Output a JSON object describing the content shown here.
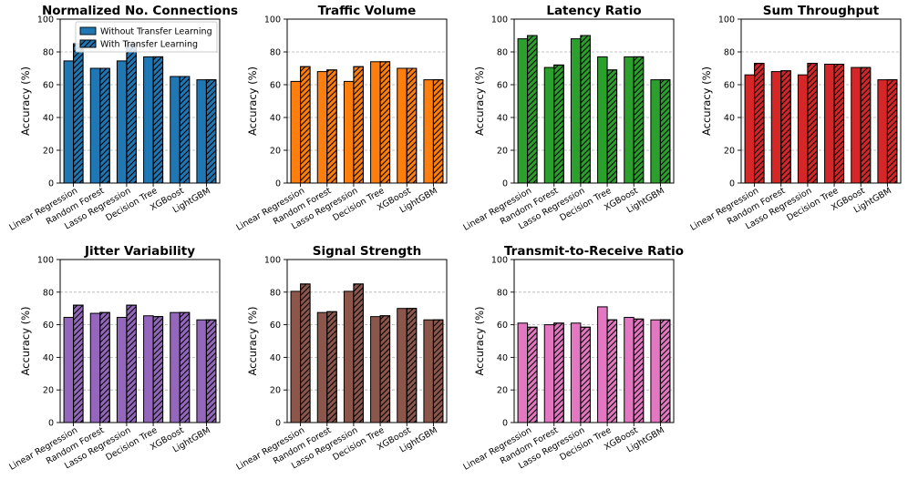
{
  "legend": {
    "without": "Without Transfer Learning",
    "with": "With Transfer Learning"
  },
  "chart_data": [
    {
      "type": "bar",
      "title": "Normalized No. Connections",
      "color": "#1f77b4",
      "ylabel": "Accuracy (%)",
      "xlabel": "",
      "ylim": [
        0,
        100
      ],
      "yticks": [
        0,
        20,
        40,
        60,
        80,
        100
      ],
      "categories": [
        "Linear Regression",
        "Random Forest",
        "Lasso Regression",
        "Decision Tree",
        "XGBoost",
        "LightGBM"
      ],
      "series": [
        {
          "name": "Without Transfer Learning",
          "values": [
            74.5,
            70,
            74.5,
            77,
            65,
            63
          ]
        },
        {
          "name": "With Transfer Learning",
          "values": [
            85,
            70,
            85,
            77,
            65,
            63
          ]
        }
      ],
      "legend": true
    },
    {
      "type": "bar",
      "title": "Traffic Volume",
      "color": "#ff7f0e",
      "ylabel": "Accuracy (%)",
      "xlabel": "",
      "ylim": [
        0,
        100
      ],
      "yticks": [
        0,
        20,
        40,
        60,
        80,
        100
      ],
      "categories": [
        "Linear Regression",
        "Random Forest",
        "Lasso Regression",
        "Decision Tree",
        "XGBoost",
        "LightGBM"
      ],
      "series": [
        {
          "name": "Without Transfer Learning",
          "values": [
            62,
            68,
            62,
            74,
            70,
            63
          ]
        },
        {
          "name": "With Transfer Learning",
          "values": [
            71,
            69,
            71,
            74,
            70,
            63
          ]
        }
      ]
    },
    {
      "type": "bar",
      "title": "Latency Ratio",
      "color": "#2ca02c",
      "ylabel": "Accuracy (%)",
      "xlabel": "",
      "ylim": [
        0,
        100
      ],
      "yticks": [
        0,
        20,
        40,
        60,
        80,
        100
      ],
      "categories": [
        "Linear Regression",
        "Random Forest",
        "Lasso Regression",
        "Decision Tree",
        "XGBoost",
        "LightGBM"
      ],
      "series": [
        {
          "name": "Without Transfer Learning",
          "values": [
            88,
            70.5,
            88,
            77,
            77,
            63
          ]
        },
        {
          "name": "With Transfer Learning",
          "values": [
            90,
            72,
            90,
            69,
            77,
            63
          ]
        }
      ]
    },
    {
      "type": "bar",
      "title": "Sum Throughput",
      "color": "#d62728",
      "ylabel": "Accuracy (%)",
      "xlabel": "",
      "ylim": [
        0,
        100
      ],
      "yticks": [
        0,
        20,
        40,
        60,
        80,
        100
      ],
      "categories": [
        "Linear Regression",
        "Random Forest",
        "Lasso Regression",
        "Decision Tree",
        "XGBoost",
        "LightGBM"
      ],
      "series": [
        {
          "name": "Without Transfer Learning",
          "values": [
            66,
            68,
            66,
            72.5,
            70.5,
            63
          ]
        },
        {
          "name": "With Transfer Learning",
          "values": [
            73,
            68.5,
            73,
            72.5,
            70.5,
            63
          ]
        }
      ]
    },
    {
      "type": "bar",
      "title": "Jitter Variability",
      "color": "#9467bd",
      "ylabel": "Accuracy (%)",
      "xlabel": "",
      "ylim": [
        0,
        100
      ],
      "yticks": [
        0,
        20,
        40,
        60,
        80,
        100
      ],
      "categories": [
        "Linear Regression",
        "Random Forest",
        "Lasso Regression",
        "Decision Tree",
        "XGBoost",
        "LightGBM"
      ],
      "series": [
        {
          "name": "Without Transfer Learning",
          "values": [
            64.5,
            67,
            64.5,
            65.5,
            67.5,
            63
          ]
        },
        {
          "name": "With Transfer Learning",
          "values": [
            72,
            67.5,
            72,
            65,
            67.5,
            63
          ]
        }
      ]
    },
    {
      "type": "bar",
      "title": "Signal Strength",
      "color": "#8c564b",
      "ylabel": "Accuracy (%)",
      "xlabel": "",
      "ylim": [
        0,
        100
      ],
      "yticks": [
        0,
        20,
        40,
        60,
        80,
        100
      ],
      "categories": [
        "Linear Regression",
        "Random Forest",
        "Lasso Regression",
        "Decision Tree",
        "XGBoost",
        "LightGBM"
      ],
      "series": [
        {
          "name": "Without Transfer Learning",
          "values": [
            80.5,
            67.5,
            80.5,
            65,
            70,
            63
          ]
        },
        {
          "name": "With Transfer Learning",
          "values": [
            85,
            68,
            85,
            65.5,
            70,
            63
          ]
        }
      ]
    },
    {
      "type": "bar",
      "title": "Transmit-to-Receive Ratio",
      "color": "#e377c2",
      "ylabel": "Accuracy (%)",
      "xlabel": "",
      "ylim": [
        0,
        100
      ],
      "yticks": [
        0,
        20,
        40,
        60,
        80,
        100
      ],
      "categories": [
        "Linear Regression",
        "Random Forest",
        "Lasso Regression",
        "Decision Tree",
        "XGBoost",
        "LightGBM"
      ],
      "series": [
        {
          "name": "Without Transfer Learning",
          "values": [
            61,
            60,
            61,
            71,
            64.5,
            63
          ]
        },
        {
          "name": "With Transfer Learning",
          "values": [
            58.5,
            61,
            58.5,
            63,
            63.5,
            63
          ]
        }
      ]
    }
  ]
}
